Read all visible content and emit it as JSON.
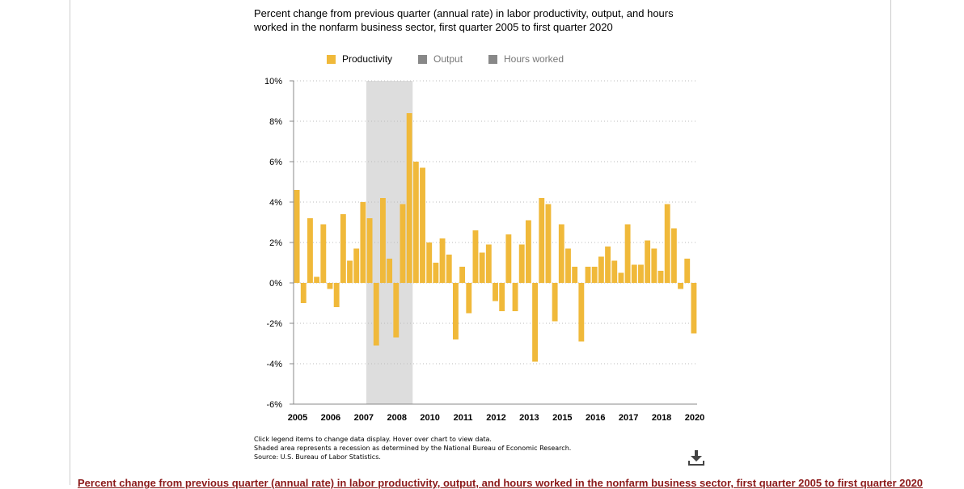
{
  "title": "Percent change from previous quarter (annual rate) in labor productivity, output, and hours worked in the nonfarm business sector, first quarter 2005 to first quarter 2020",
  "legend": [
    {
      "label": "Productivity",
      "color": "#f0b93a",
      "active": true
    },
    {
      "label": "Output",
      "color": "#888888",
      "active": false
    },
    {
      "label": "Hours worked",
      "color": "#888888",
      "active": false
    }
  ],
  "notes": [
    "Click legend items to change data display. Hover over chart to view data.",
    "Shaded area represents a recession as determined by the National Bureau of Economic Research.",
    "Source: U.S. Bureau of Labor Statistics."
  ],
  "download_icon": "download-icon",
  "caption": "Percent change from previous quarter (annual rate) in labor productivity, output, and hours worked in the nonfarm business sector, first quarter 2005 to first quarter 2020",
  "chart_data": {
    "type": "bar",
    "title": "Percent change from previous quarter (annual rate) in labor productivity, output, and hours worked in the nonfarm business sector, first quarter 2005 to first quarter 2020",
    "xlabel": "",
    "ylabel": "",
    "ylim": [
      -6,
      10
    ],
    "yticks": [
      "10%",
      "8%",
      "6%",
      "4%",
      "2%",
      "0%",
      "-2%",
      "-4%",
      "-6%"
    ],
    "ytick_values": [
      10,
      8,
      6,
      4,
      2,
      0,
      -2,
      -4,
      -6
    ],
    "xticks": [
      "2005",
      "2006",
      "2007",
      "2008",
      "2010",
      "2011",
      "2012",
      "2013",
      "2015",
      "2016",
      "2017",
      "2018",
      "2020"
    ],
    "grid": true,
    "recession": {
      "start": "2007-Q4",
      "end": "2009-Q2",
      "color": "#dddddd"
    },
    "bar_color": "#f0b93a",
    "series": [
      {
        "name": "Productivity",
        "quarters": [
          "2005-Q1",
          "2005-Q2",
          "2005-Q3",
          "2005-Q4",
          "2006-Q1",
          "2006-Q2",
          "2006-Q3",
          "2006-Q4",
          "2007-Q1",
          "2007-Q2",
          "2007-Q3",
          "2007-Q4",
          "2008-Q1",
          "2008-Q2",
          "2008-Q3",
          "2008-Q4",
          "2009-Q1",
          "2009-Q2",
          "2009-Q3",
          "2009-Q4",
          "2010-Q1",
          "2010-Q2",
          "2010-Q3",
          "2010-Q4",
          "2011-Q1",
          "2011-Q2",
          "2011-Q3",
          "2011-Q4",
          "2012-Q1",
          "2012-Q2",
          "2012-Q3",
          "2012-Q4",
          "2013-Q1",
          "2013-Q2",
          "2013-Q3",
          "2013-Q4",
          "2014-Q1",
          "2014-Q2",
          "2014-Q3",
          "2014-Q4",
          "2015-Q1",
          "2015-Q2",
          "2015-Q3",
          "2015-Q4",
          "2016-Q1",
          "2016-Q2",
          "2016-Q3",
          "2016-Q4",
          "2017-Q1",
          "2017-Q2",
          "2017-Q3",
          "2017-Q4",
          "2018-Q1",
          "2018-Q2",
          "2018-Q3",
          "2018-Q4",
          "2019-Q1",
          "2019-Q2",
          "2019-Q3",
          "2019-Q4",
          "2020-Q1"
        ],
        "values": [
          4.6,
          -1.0,
          3.2,
          0.3,
          2.9,
          -0.3,
          -1.2,
          3.4,
          1.1,
          1.7,
          4.0,
          3.2,
          -3.1,
          4.2,
          1.2,
          -2.7,
          3.9,
          8.4,
          6.0,
          5.7,
          2.0,
          1.0,
          2.2,
          1.4,
          -2.8,
          0.8,
          -1.5,
          2.6,
          1.5,
          1.9,
          -0.9,
          -1.4,
          2.4,
          -1.4,
          1.9,
          3.1,
          -3.9,
          4.2,
          3.9,
          -1.9,
          2.9,
          1.7,
          0.8,
          -2.9,
          0.8,
          0.8,
          1.3,
          1.8,
          1.1,
          0.5,
          2.9,
          0.9,
          0.9,
          2.1,
          1.7,
          0.6,
          3.9,
          2.7,
          -0.3,
          1.2,
          -2.5
        ]
      }
    ]
  }
}
